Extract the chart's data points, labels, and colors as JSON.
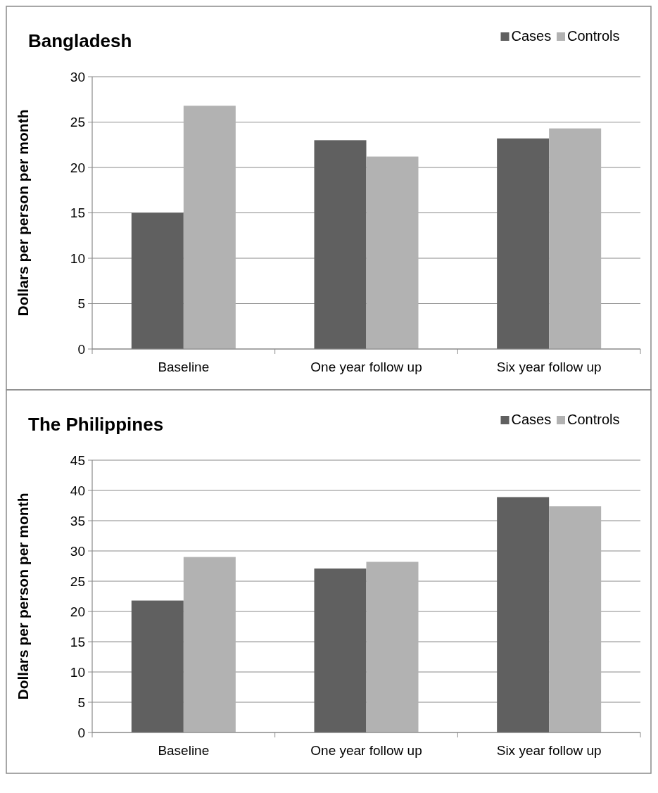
{
  "chart_data": [
    {
      "type": "bar",
      "title": "Bangladesh",
      "ylabel": "Dollars per person per month",
      "categories": [
        "Baseline",
        "One year follow up",
        "Six year follow up"
      ],
      "series": [
        {
          "name": "Cases",
          "color": "#606060",
          "values": [
            15,
            23,
            23.2
          ]
        },
        {
          "name": "Controls",
          "color": "#b2b2b2",
          "values": [
            26.8,
            21.2,
            24.3
          ]
        }
      ],
      "ylim": [
        0,
        30
      ],
      "yticks": [
        0,
        5,
        10,
        15,
        20,
        25,
        30
      ],
      "grid": "y",
      "legend": "top right"
    },
    {
      "type": "bar",
      "title": "The Philippines",
      "ylabel": "Dollars per person per month",
      "categories": [
        "Baseline",
        "One year follow up",
        "Six year follow up"
      ],
      "series": [
        {
          "name": "Cases",
          "color": "#606060",
          "values": [
            21.8,
            27.1,
            38.9
          ]
        },
        {
          "name": "Controls",
          "color": "#b2b2b2",
          "values": [
            29,
            28.2,
            37.4
          ]
        }
      ],
      "ylim": [
        0,
        45
      ],
      "yticks": [
        0,
        5,
        10,
        15,
        20,
        25,
        30,
        35,
        40,
        45
      ],
      "grid": "y",
      "legend": "top right"
    }
  ]
}
